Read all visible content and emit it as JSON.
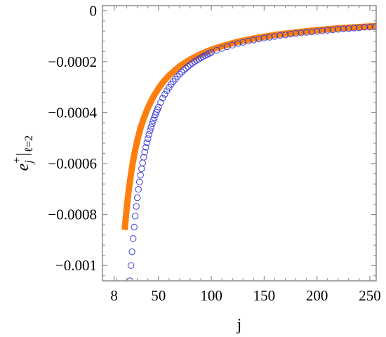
{
  "chart_data": {
    "type": "scatter",
    "xlabel": "j",
    "ylabel": {
      "base": "e",
      "sub": "j",
      "sup": "+",
      "eval": "|",
      "eval_sub": "ℓ=2"
    },
    "xlim": [
      -3,
      256
    ],
    "ylim": [
      -0.00106,
      2e-05
    ],
    "x_ticks": [
      {
        "value": 8,
        "label": "8"
      },
      {
        "value": 50,
        "label": "50"
      },
      {
        "value": 100,
        "label": "100"
      },
      {
        "value": 150,
        "label": "150"
      },
      {
        "value": 200,
        "label": "200"
      },
      {
        "value": 250,
        "label": "250"
      }
    ],
    "y_ticks": [
      {
        "value": 0,
        "label": "0"
      },
      {
        "value": -0.0002,
        "label": "−0.0002"
      },
      {
        "value": -0.0004,
        "label": "−0.0004"
      },
      {
        "value": -0.0006,
        "label": "−0.0006"
      },
      {
        "value": -0.0008,
        "label": "−0.0008"
      },
      {
        "value": -0.001,
        "label": "−0.001"
      }
    ],
    "grid": false,
    "series": [
      {
        "style": "open-circles",
        "color": "#3b3bd6",
        "x": [
          23,
          24,
          25,
          26,
          27,
          28,
          29,
          30,
          31,
          32,
          33,
          34,
          35,
          36,
          37,
          38,
          39,
          40,
          41,
          42,
          43,
          44,
          45,
          46,
          47,
          48,
          49,
          50,
          52,
          54,
          56,
          58,
          60,
          62,
          64,
          66,
          68,
          70,
          72,
          74,
          76,
          78,
          80,
          82,
          84,
          86,
          88,
          90,
          92,
          94,
          96,
          98,
          100,
          105,
          110,
          115,
          120,
          125,
          130,
          135,
          140,
          145,
          150,
          155,
          160,
          165,
          170,
          175,
          180,
          185,
          190,
          195,
          200,
          205,
          210,
          215,
          220,
          225,
          230,
          235,
          240,
          245,
          250,
          255
        ],
        "y": [
          -0.00106,
          -0.001,
          -0.000946,
          -0.000894,
          -0.000849,
          -0.000806,
          -0.000768,
          -0.000734,
          -0.000701,
          -0.000672,
          -0.000645,
          -0.00062,
          -0.000597,
          -0.000575,
          -0.000555,
          -0.000536,
          -0.000518,
          -0.000502,
          -0.000486,
          -0.000471,
          -0.000457,
          -0.000444,
          -0.000431,
          -0.00042,
          -0.000408,
          -0.000398,
          -0.000388,
          -0.000378,
          -0.00036,
          -0.000343,
          -0.000328,
          -0.000314,
          -0.000301,
          -0.000289,
          -0.000278,
          -0.000268,
          -0.000258,
          -0.000249,
          -0.000241,
          -0.000233,
          -0.000226,
          -0.000219,
          -0.000212,
          -0.000206,
          -0.0002,
          -0.000195,
          -0.00019,
          -0.000185,
          -0.00018,
          -0.000176,
          -0.000172,
          -0.000168,
          -0.000164,
          -0.000155,
          -0.000148,
          -0.000141,
          -0.000135,
          -0.000129,
          -0.000124,
          -0.000119,
          -0.000115,
          -0.000111,
          -0.000107,
          -0.000104,
          -0.000101,
          -9.7e-05,
          -9.5e-05,
          -9.2e-05,
          -8.9e-05,
          -8.7e-05,
          -8.5e-05,
          -8.3e-05,
          -8.1e-05,
          -7.9e-05,
          -7.7e-05,
          -7.5e-05,
          -7.3e-05,
          -7.1e-05,
          -7e-05,
          -6.8e-05,
          -6.7e-05,
          -6.5e-05,
          -6.4e-05,
          -6.3e-05
        ]
      },
      {
        "style": "thick-line",
        "color": "#ff7f0e",
        "x": [
          18,
          20,
          22,
          24,
          26,
          28,
          30,
          33,
          36,
          40,
          45,
          50,
          55,
          60,
          70,
          80,
          90,
          100,
          110,
          125,
          140,
          160,
          180,
          200,
          220,
          240,
          256
        ],
        "y": [
          -0.00086,
          -0.000772,
          -0.0007,
          -0.00064,
          -0.000589,
          -0.000546,
          -0.000508,
          -0.000461,
          -0.000423,
          -0.000381,
          -0.000339,
          -0.000305,
          -0.000277,
          -0.000254,
          -0.000218,
          -0.000191,
          -0.00017,
          -0.000153,
          -0.000139,
          -0.000122,
          -0.000109,
          -9.5e-05,
          -8.5e-05,
          -7.6e-05,
          -6.9e-05,
          -6.4e-05,
          -6e-05
        ]
      }
    ]
  }
}
